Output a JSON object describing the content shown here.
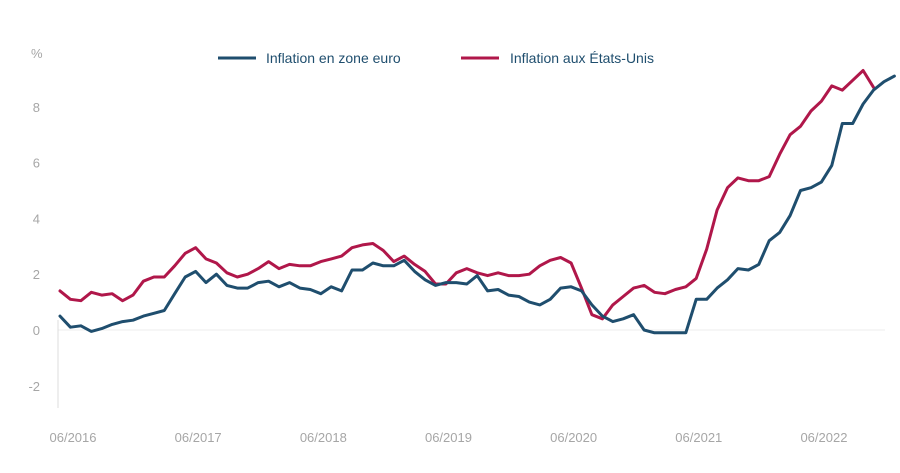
{
  "chart_data": {
    "type": "line",
    "title": "",
    "xlabel": "",
    "ylabel": "%",
    "ylim": [
      -2.5,
      10
    ],
    "y_ticks": [
      -2,
      0,
      2,
      4,
      6,
      8
    ],
    "x_tick_labels": [
      "06/2016",
      "06/2017",
      "06/2018",
      "06/2019",
      "06/2020",
      "06/2021",
      "06/2022"
    ],
    "x_tick_months": [
      "2016-06",
      "2017-06",
      "2018-06",
      "2019-06",
      "2020-06",
      "2021-06",
      "2022-06"
    ],
    "grid": false,
    "legend_position": "top-center",
    "series": [
      {
        "name": "Inflation en zone euro",
        "color": "#1f4e6e",
        "start": "2016-06",
        "values": [
          0.5,
          0.1,
          0.15,
          -0.05,
          0.05,
          0.2,
          0.3,
          0.35,
          0.5,
          0.6,
          0.7,
          1.3,
          1.9,
          2.1,
          1.7,
          2.0,
          1.6,
          1.5,
          1.5,
          1.7,
          1.75,
          1.55,
          1.7,
          1.5,
          1.45,
          1.3,
          1.55,
          1.4,
          2.15,
          2.15,
          2.4,
          2.3,
          2.3,
          2.5,
          2.1,
          1.8,
          1.6,
          1.7,
          1.7,
          1.65,
          1.95,
          1.4,
          1.45,
          1.25,
          1.2,
          1.0,
          0.9,
          1.1,
          1.5,
          1.55,
          1.4,
          0.9,
          0.5,
          0.3,
          0.4,
          0.55,
          0.0,
          -0.1,
          -0.1,
          -0.1,
          -0.1,
          1.1,
          1.1,
          1.5,
          1.8,
          2.2,
          2.15,
          2.35,
          3.2,
          3.5,
          4.1,
          5.0,
          5.1,
          5.3,
          5.9,
          7.4,
          7.4,
          8.1,
          8.6,
          8.9,
          9.1
        ]
      },
      {
        "name": "Inflation aux États-Unis",
        "color": "#b0174a",
        "start": "2016-06",
        "values": [
          1.4,
          1.1,
          1.05,
          1.35,
          1.25,
          1.3,
          1.05,
          1.25,
          1.75,
          1.9,
          1.9,
          2.3,
          2.75,
          2.95,
          2.55,
          2.4,
          2.05,
          1.9,
          2.0,
          2.2,
          2.45,
          2.2,
          2.35,
          2.3,
          2.3,
          2.45,
          2.55,
          2.65,
          2.95,
          3.05,
          3.1,
          2.85,
          2.45,
          2.65,
          2.35,
          2.1,
          1.65,
          1.65,
          2.05,
          2.2,
          2.05,
          1.95,
          2.05,
          1.95,
          1.95,
          2.0,
          2.3,
          2.5,
          2.6,
          2.4,
          1.5,
          0.55,
          0.4,
          0.9,
          1.2,
          1.5,
          1.6,
          1.35,
          1.3,
          1.45,
          1.55,
          1.85,
          2.9,
          4.3,
          5.1,
          5.45,
          5.35,
          5.35,
          5.5,
          6.3,
          7.0,
          7.3,
          7.85,
          8.2,
          8.75,
          8.6,
          8.95,
          9.3,
          8.7
        ]
      }
    ]
  }
}
